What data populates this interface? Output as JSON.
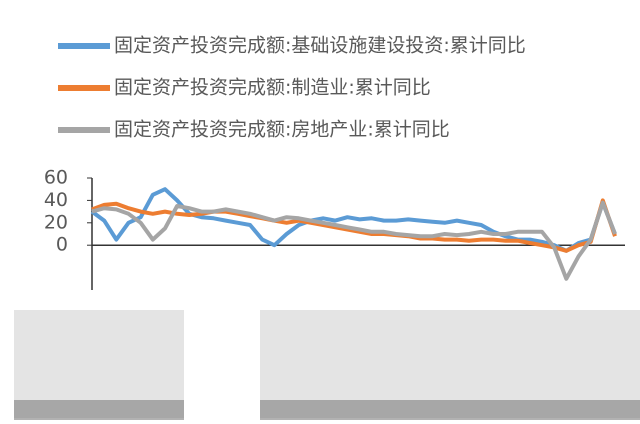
{
  "chart_data": {
    "type": "line",
    "ylim": [
      -40,
      60
    ],
    "yticks": [
      0,
      20,
      40,
      60
    ],
    "legend": "top",
    "series": [
      {
        "name": "固定资产投资完成额:基础设施建设投资:累计同比",
        "color": "#5b9bd5",
        "values": [
          30,
          22,
          5,
          20,
          25,
          45,
          50,
          40,
          28,
          25,
          24,
          22,
          20,
          18,
          5,
          0,
          10,
          18,
          22,
          24,
          22,
          25,
          23,
          24,
          22,
          22,
          23,
          22,
          21,
          20,
          22,
          20,
          18,
          12,
          8,
          5,
          5,
          3,
          0,
          -5,
          2,
          5,
          38,
          10
        ]
      },
      {
        "name": "固定资产投资完成额:制造业:累计同比",
        "color": "#ed7d31",
        "values": [
          32,
          36,
          37,
          33,
          30,
          28,
          30,
          28,
          27,
          28,
          30,
          30,
          28,
          26,
          24,
          22,
          20,
          22,
          20,
          18,
          16,
          14,
          12,
          10,
          10,
          9,
          8,
          6,
          6,
          5,
          5,
          4,
          5,
          5,
          4,
          4,
          2,
          0,
          -2,
          -5,
          0,
          3,
          40,
          8
        ]
      },
      {
        "name": "固定资产投资完成额:房地产业:累计同比",
        "color": "#a5a5a5",
        "values": [
          30,
          33,
          32,
          28,
          20,
          5,
          15,
          35,
          33,
          30,
          30,
          32,
          30,
          28,
          25,
          22,
          25,
          24,
          22,
          20,
          18,
          16,
          14,
          12,
          12,
          10,
          9,
          8,
          8,
          10,
          9,
          10,
          12,
          10,
          10,
          12,
          12,
          12,
          -2,
          -30,
          -10,
          5,
          38,
          10
        ]
      }
    ]
  }
}
